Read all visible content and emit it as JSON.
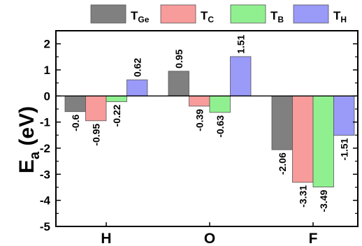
{
  "chart_data": {
    "type": "bar",
    "categories": [
      "H",
      "O",
      "F"
    ],
    "series": [
      {
        "name_main": "T",
        "name_sub": "Ge",
        "color": "#808080",
        "values": [
          -0.6,
          0.95,
          -2.06
        ],
        "labels": [
          "-0.6",
          "0.95",
          "-2.06"
        ]
      },
      {
        "name_main": "T",
        "name_sub": "C",
        "color": "#f89b9b",
        "values": [
          -0.95,
          -0.39,
          -3.31
        ],
        "labels": [
          "-0.95",
          "-0.39",
          "-3.31"
        ]
      },
      {
        "name_main": "T",
        "name_sub": "B",
        "color": "#90f090",
        "values": [
          -0.22,
          -0.63,
          -3.49
        ],
        "labels": [
          "-0.22",
          "-0.63",
          "-3.49"
        ]
      },
      {
        "name_main": "T",
        "name_sub": "H",
        "color": "#9a9af8",
        "values": [
          0.62,
          1.51,
          -1.51
        ],
        "labels": [
          "0.62",
          "1.51",
          "-1.51"
        ]
      }
    ],
    "ylabel_main": "E",
    "ylabel_sub": "a",
    "ylabel_unit": " (eV)",
    "ylim": [
      -5,
      2.5
    ],
    "yticks": [
      2,
      1,
      0,
      -1,
      -2,
      -3,
      -4,
      -5
    ],
    "ytick_labels": [
      "2",
      "1",
      "0",
      "-1",
      "-2",
      "-3",
      "-4",
      "-5"
    ],
    "legend_position": "top",
    "grid": false
  }
}
